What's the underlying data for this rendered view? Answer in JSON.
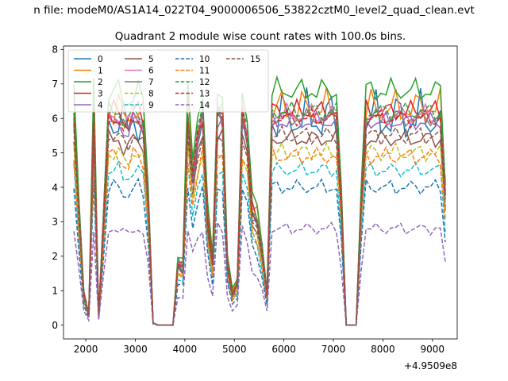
{
  "suptitle": "n file: modeM0/AS1A14_022T04_9000006506_53822cztM0_level2_quad_clean.evt",
  "chart_data": {
    "type": "line",
    "title": "Quadrant 2 module wise count rates with 100.0s bins.",
    "xlabel": "",
    "ylabel": "",
    "x_offset_label": "+4.9509e8",
    "xlim": [
      1550,
      9500
    ],
    "ylim": [
      -0.4,
      8.1
    ],
    "xticks": [
      2000,
      3000,
      4000,
      5000,
      6000,
      7000,
      8000,
      9000
    ],
    "yticks": [
      0,
      1,
      2,
      3,
      4,
      5,
      6,
      7,
      8
    ],
    "legend_position": "upper-left",
    "legend_columns": 4,
    "x": [
      1760,
      1860,
      1960,
      2060,
      2160,
      2260,
      2360,
      2460,
      2560,
      2660,
      2760,
      2860,
      2960,
      3060,
      3160,
      3260,
      3360,
      3460,
      3560,
      3660,
      3760,
      3860,
      3960,
      4060,
      4160,
      4260,
      4360,
      4460,
      4560,
      4660,
      4760,
      4860,
      4960,
      5060,
      5160,
      5260,
      5360,
      5460,
      5560,
      5660,
      5760,
      5860,
      5960,
      6060,
      6160,
      6260,
      6360,
      6460,
      6560,
      6660,
      6760,
      6860,
      6960,
      7060,
      7160,
      7260,
      7360,
      7460,
      7560,
      7660,
      7760,
      7860,
      7960,
      8060,
      8160,
      8260,
      8360,
      8460,
      8560,
      8660,
      8760,
      8860,
      8960,
      9060,
      9160,
      9260
    ],
    "base": [
      1.0,
      0.55,
      0.15,
      0.05,
      1.0,
      0.05,
      0.5,
      1.0,
      1.0,
      1.0,
      0.95,
      0.95,
      1.0,
      1.0,
      0.95,
      0.6,
      0.01,
      0.0,
      0.0,
      0.0,
      0.0,
      0.3,
      0.28,
      1.0,
      0.72,
      0.9,
      1.0,
      0.5,
      0.3,
      1.0,
      1.0,
      0.3,
      0.15,
      0.2,
      1.0,
      0.9,
      0.55,
      0.5,
      0.35,
      0.15,
      1.0,
      1.0,
      1.0,
      1.0,
      1.0,
      1.0,
      1.0,
      1.0,
      1.0,
      1.0,
      1.0,
      1.0,
      1.0,
      1.0,
      0.6,
      0.0,
      0.0,
      0.0,
      0.6,
      1.0,
      1.0,
      1.0,
      1.0,
      1.0,
      1.0,
      1.0,
      1.0,
      1.0,
      1.0,
      1.0,
      1.0,
      1.0,
      1.0,
      1.0,
      1.0,
      0.62
    ],
    "series": [
      {
        "name": "0",
        "color": "#1f77b4",
        "dash": "solid",
        "level": 6.0,
        "amp": 0.9
      },
      {
        "name": "1",
        "color": "#ff7f0e",
        "dash": "solid",
        "level": 6.3,
        "amp": 0.6
      },
      {
        "name": "2",
        "color": "#2ca02c",
        "dash": "solid",
        "level": 6.8,
        "amp": 0.4
      },
      {
        "name": "3",
        "color": "#d62728",
        "dash": "solid",
        "level": 6.2,
        "amp": 0.35
      },
      {
        "name": "4",
        "color": "#9467bd",
        "dash": "solid",
        "level": 5.9,
        "amp": 0.3
      },
      {
        "name": "5",
        "color": "#8c564b",
        "dash": "solid",
        "level": 5.4,
        "amp": 0.3
      },
      {
        "name": "6",
        "color": "#e377c2",
        "dash": "solid",
        "level": 6.1,
        "amp": 0.35
      },
      {
        "name": "7",
        "color": "#7f7f7f",
        "dash": "solid",
        "level": 6.0,
        "amp": 0.3
      },
      {
        "name": "8",
        "color": "#bcbd22",
        "dash": "dashed",
        "level": 5.0,
        "amp": 0.3
      },
      {
        "name": "9",
        "color": "#17becf",
        "dash": "dashed",
        "level": 4.5,
        "amp": 0.25
      },
      {
        "name": "10",
        "color": "#1f77b4",
        "dash": "dashed",
        "level": 4.0,
        "amp": 0.25
      },
      {
        "name": "11",
        "color": "#ff7f0e",
        "dash": "dashed",
        "level": 4.9,
        "amp": 0.3
      },
      {
        "name": "12",
        "color": "#2ca02c",
        "dash": "dashed",
        "level": 6.2,
        "amp": 0.3
      },
      {
        "name": "13",
        "color": "#d62728",
        "dash": "dashed",
        "level": 6.0,
        "amp": 0.3
      },
      {
        "name": "14",
        "color": "#9467bd",
        "dash": "dashed",
        "level": 2.8,
        "amp": 0.2
      },
      {
        "name": "15",
        "color": "#8c564b",
        "dash": "dashed",
        "level": 5.5,
        "amp": 0.3
      }
    ]
  }
}
